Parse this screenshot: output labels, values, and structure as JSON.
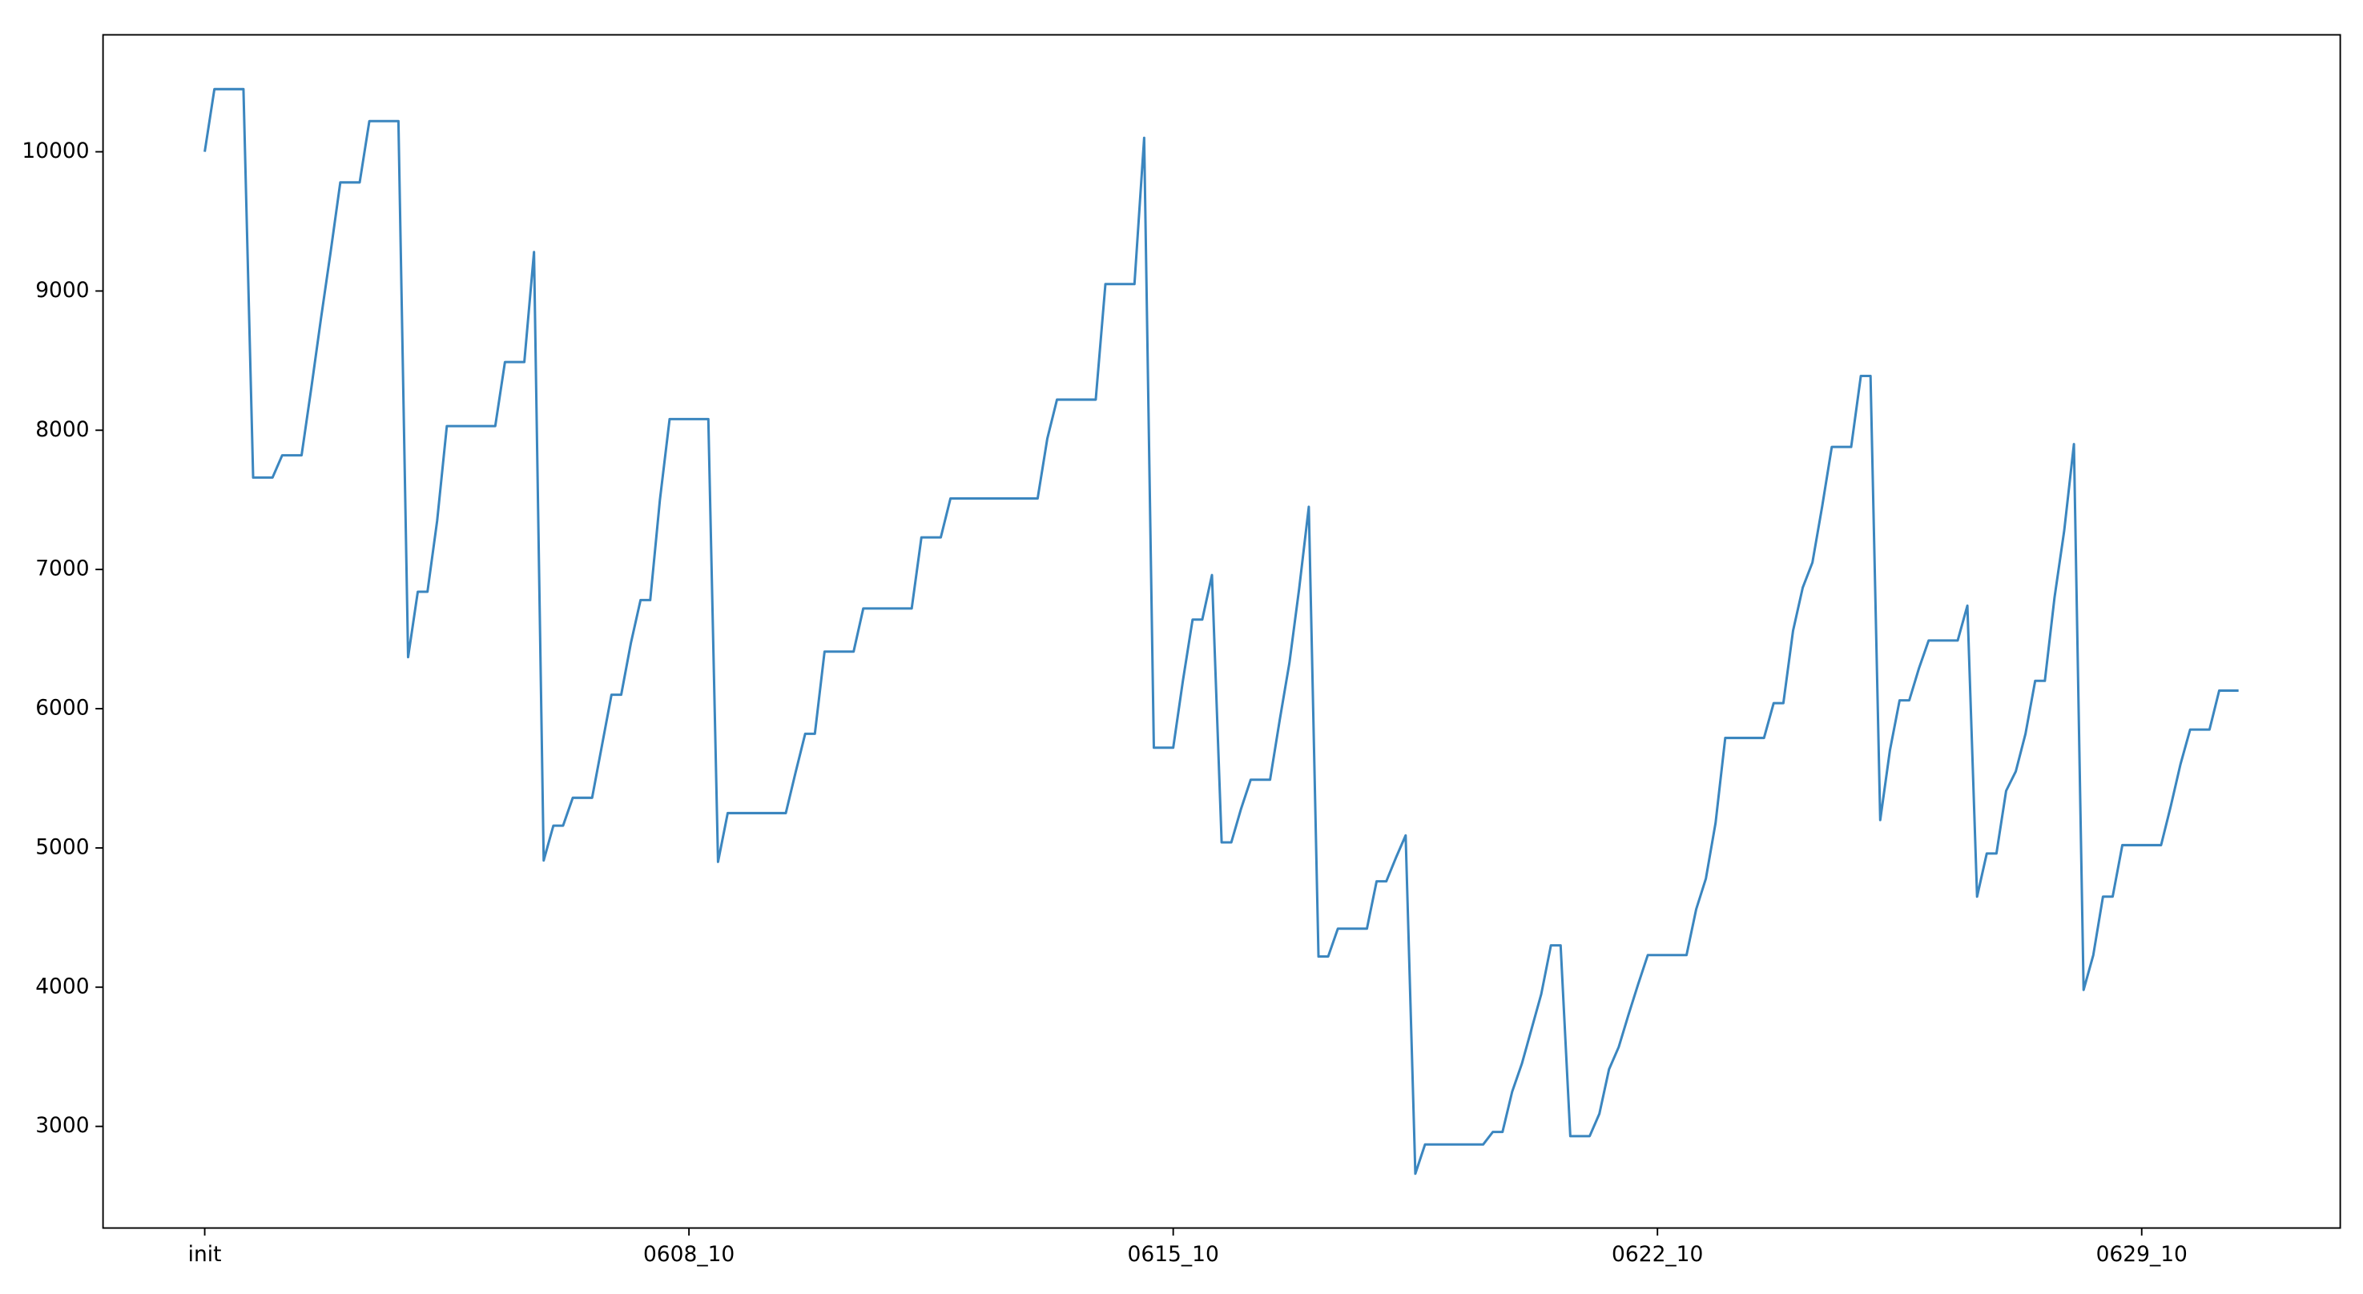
{
  "chart_data": {
    "type": "line",
    "categories": [
      "init",
      null,
      null,
      null,
      null,
      null,
      null,
      null,
      null,
      null,
      null,
      null,
      null,
      null,
      null,
      null,
      null,
      null,
      null,
      null,
      null,
      null,
      null,
      null,
      null,
      null,
      null,
      null,
      null,
      null,
      null,
      null,
      null,
      null,
      null,
      null,
      null,
      null,
      null,
      null,
      null,
      null,
      null,
      null,
      null,
      null,
      null,
      null,
      null,
      null,
      "0608_10",
      null,
      null,
      null,
      null,
      null,
      null,
      null,
      null,
      null,
      null,
      null,
      null,
      null,
      null,
      null,
      null,
      null,
      null,
      null,
      null,
      null,
      null,
      null,
      null,
      null,
      null,
      null,
      null,
      null,
      null,
      null,
      null,
      null,
      null,
      null,
      null,
      null,
      null,
      null,
      null,
      null,
      null,
      null,
      null,
      null,
      null,
      null,
      null,
      null,
      "0615_10",
      null,
      null,
      null,
      null,
      null,
      null,
      null,
      null,
      null,
      null,
      null,
      null,
      null,
      null,
      null,
      null,
      null,
      null,
      null,
      null,
      null,
      null,
      null,
      null,
      null,
      null,
      null,
      null,
      null,
      null,
      null,
      null,
      null,
      null,
      null,
      null,
      null,
      null,
      null,
      null,
      null,
      null,
      null,
      null,
      null,
      null,
      null,
      null,
      null,
      "0622_10",
      null,
      null,
      null,
      null,
      null,
      null,
      null,
      null,
      null,
      null,
      null,
      null,
      null,
      null,
      null,
      null,
      null,
      null,
      null,
      null,
      null,
      null,
      null,
      null,
      null,
      null,
      null,
      null,
      null,
      null,
      null,
      null,
      null,
      null,
      null,
      null,
      null,
      null,
      null,
      null,
      null,
      null,
      null,
      null,
      null,
      null,
      null,
      null,
      null,
      "0629_10",
      null,
      null,
      null,
      null,
      null,
      null,
      null,
      null,
      null,
      null
    ],
    "series": [
      {
        "color": "#3b86bf",
        "values": [
          10000,
          10450,
          10450,
          10450,
          10450,
          7660,
          7660,
          7660,
          7820,
          7820,
          7820,
          8300,
          8800,
          9280,
          9780,
          9780,
          9780,
          10220,
          10220,
          10220,
          10220,
          6370,
          6840,
          6840,
          7350,
          8030,
          8030,
          8030,
          8030,
          8030,
          8030,
          8490,
          8490,
          8490,
          9280,
          4910,
          5160,
          5160,
          5360,
          5360,
          5360,
          5730,
          6100,
          6100,
          6470,
          6780,
          6780,
          7500,
          8080,
          8080,
          8080,
          8080,
          8080,
          4900,
          5250,
          5250,
          5250,
          5250,
          5250,
          5250,
          5250,
          5540,
          5820,
          5820,
          6410,
          6410,
          6410,
          6410,
          6720,
          6720,
          6720,
          6720,
          6720,
          6720,
          7230,
          7230,
          7230,
          7510,
          7510,
          7510,
          7510,
          7510,
          7510,
          7510,
          7510,
          7510,
          7510,
          7940,
          8220,
          8220,
          8220,
          8220,
          8220,
          9050,
          9050,
          9050,
          9050,
          10100,
          5720,
          5720,
          5720,
          6200,
          6640,
          6640,
          6960,
          5040,
          5040,
          5280,
          5490,
          5490,
          5490,
          5920,
          6330,
          6860,
          7450,
          4220,
          4220,
          4420,
          4420,
          4420,
          4420,
          4760,
          4760,
          4930,
          5090,
          2660,
          2870,
          2870,
          2870,
          2870,
          2870,
          2870,
          2870,
          2960,
          2960,
          3250,
          3450,
          3700,
          3950,
          4300,
          4300,
          2930,
          2930,
          2930,
          3090,
          3410,
          3570,
          3800,
          4020,
          4230,
          4230,
          4230,
          4230,
          4230,
          4560,
          4780,
          5180,
          5790,
          5790,
          5790,
          5790,
          5790,
          6040,
          6040,
          6560,
          6870,
          7050,
          7450,
          7880,
          7880,
          7880,
          8390,
          8390,
          5200,
          5700,
          6060,
          6060,
          6290,
          6490,
          6490,
          6490,
          6490,
          6740,
          4650,
          4960,
          4960,
          5410,
          5550,
          5820,
          6200,
          6200,
          6800,
          7280,
          7900,
          3980,
          4230,
          4650,
          4650,
          5020,
          5020,
          5020,
          5020,
          5020,
          5300,
          5600,
          5850,
          5850,
          5850,
          6130,
          6130,
          6130
        ]
      }
    ],
    "ylim": [
      2270,
      10840
    ],
    "yticks": [
      3000,
      4000,
      5000,
      6000,
      7000,
      8000,
      9000,
      10000
    ]
  }
}
